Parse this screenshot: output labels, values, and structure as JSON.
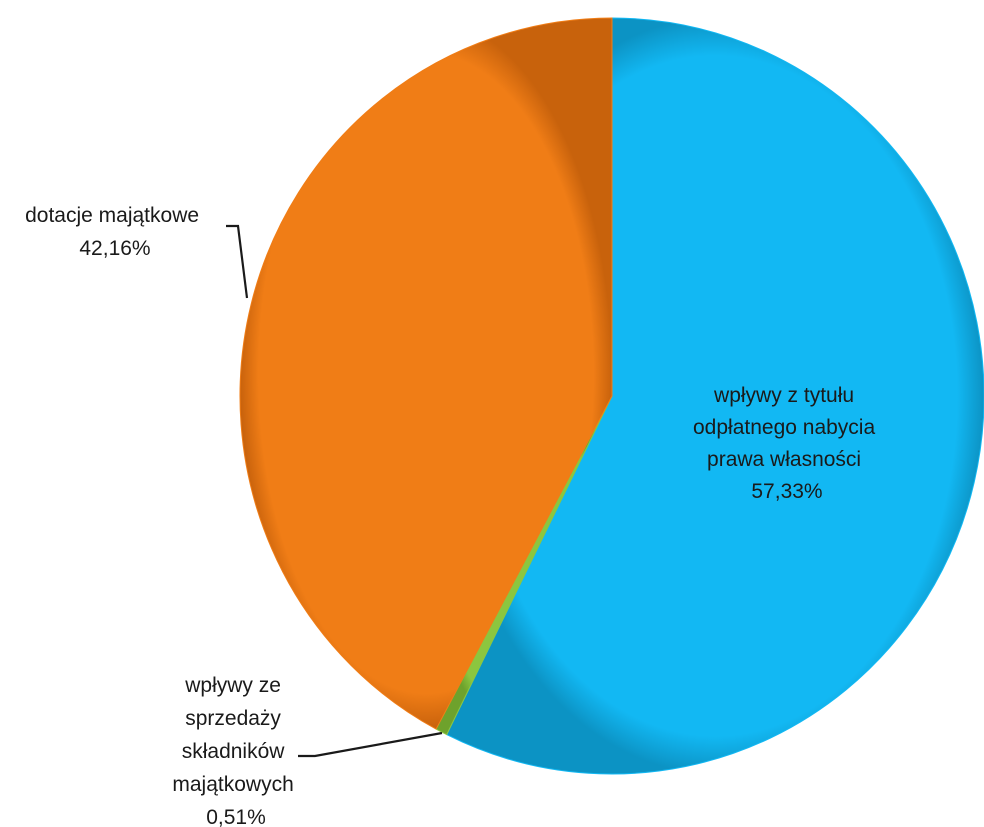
{
  "chart_data": {
    "type": "pie",
    "title": "",
    "slices": [
      {
        "key": "odplatne",
        "lines": [
          "wpływy z tytułu",
          "odpłatnego nabycia",
          "prawa własności"
        ],
        "value_label": "57,33%",
        "value": 57.33,
        "color": "#12b8f3"
      },
      {
        "key": "sprzedaz",
        "lines": [
          "wpływy ze",
          "sprzedaży",
          "składników",
          "majątkowych"
        ],
        "value_label": "0,51%",
        "value": 0.51,
        "color": "#8cc63f"
      },
      {
        "key": "dotacje",
        "lines": [
          "dotacje majątkowe"
        ],
        "value_label": "42,16%",
        "value": 42.16,
        "color": "#f07d16"
      }
    ],
    "legend": "none",
    "data_labels": "category-and-percent"
  }
}
